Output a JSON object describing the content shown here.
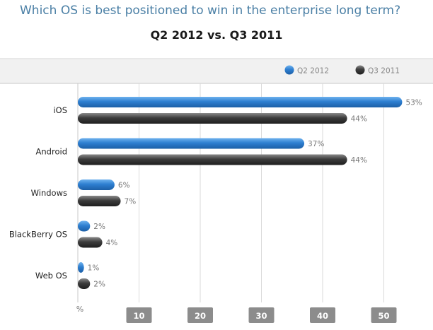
{
  "chart_data": {
    "type": "bar",
    "orientation": "horizontal",
    "title": "Which OS is best positioned to win in the enterprise long term?",
    "subtitle": "Q2 2012 vs. Q3 2011",
    "categories": [
      "iOS",
      "Android",
      "Windows",
      "BlackBerry OS",
      "Web OS"
    ],
    "series": [
      {
        "name": "Q2 2012",
        "values": [
          53,
          37,
          6,
          2,
          1
        ],
        "labels": [
          "53%",
          "37%",
          "6%",
          "2%",
          "1%"
        ],
        "color": "#2e7fd1"
      },
      {
        "name": "Q3 2011",
        "values": [
          44,
          44,
          7,
          4,
          2
        ],
        "labels": [
          "44%",
          "44%",
          "7%",
          "4%",
          "2%"
        ],
        "color": "#3d3d3d"
      }
    ],
    "x_ticks": [
      "10",
      "20",
      "30",
      "40",
      "50"
    ],
    "x_unit_label": "%",
    "xlim": [
      0,
      55
    ],
    "legend": "top-right",
    "grid": true
  }
}
